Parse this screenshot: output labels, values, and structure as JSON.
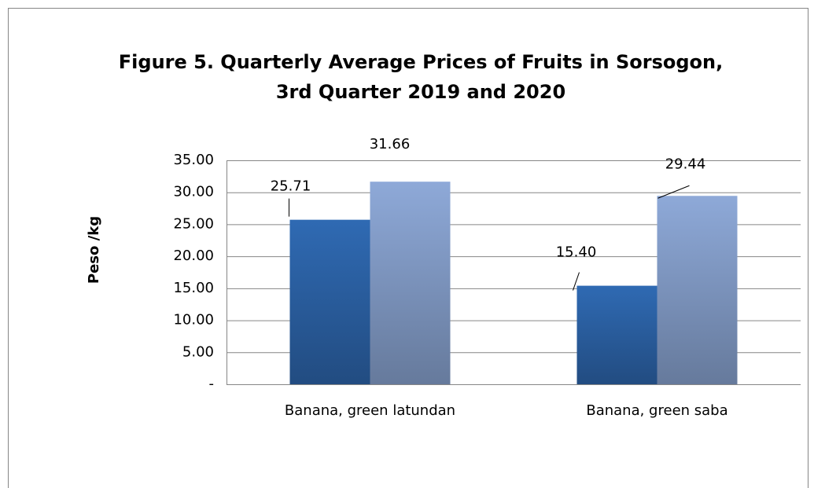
{
  "chart_data": {
    "type": "bar",
    "title": [
      "Figure 5. Quarterly Average Prices of Fruits in Sorsogon,",
      "3rd Quarter 2019 and 2020"
    ],
    "ylabel": "Peso /kg",
    "categories": [
      "Banana, green latundan",
      "Banana,  green saba"
    ],
    "series": [
      {
        "color": "#2f6ab3",
        "values": [
          25.71,
          15.4
        ],
        "value_labels": [
          "25.71",
          "15.40"
        ]
      },
      {
        "color": "#8ea9d8",
        "values": [
          31.66,
          29.44
        ],
        "value_labels": [
          "31.66",
          "29.44"
        ]
      }
    ],
    "ylim": [
      0,
      35
    ],
    "yticks": [
      {
        "value": 0,
        "label": "-"
      },
      {
        "value": 5,
        "label": "5.00"
      },
      {
        "value": 10,
        "label": "10.00"
      },
      {
        "value": 15,
        "label": "15.00"
      },
      {
        "value": 20,
        "label": "20.00"
      },
      {
        "value": 25,
        "label": "25.00"
      },
      {
        "value": 30,
        "label": "30.00"
      },
      {
        "value": 35,
        "label": "35.00"
      }
    ],
    "grid": true
  }
}
